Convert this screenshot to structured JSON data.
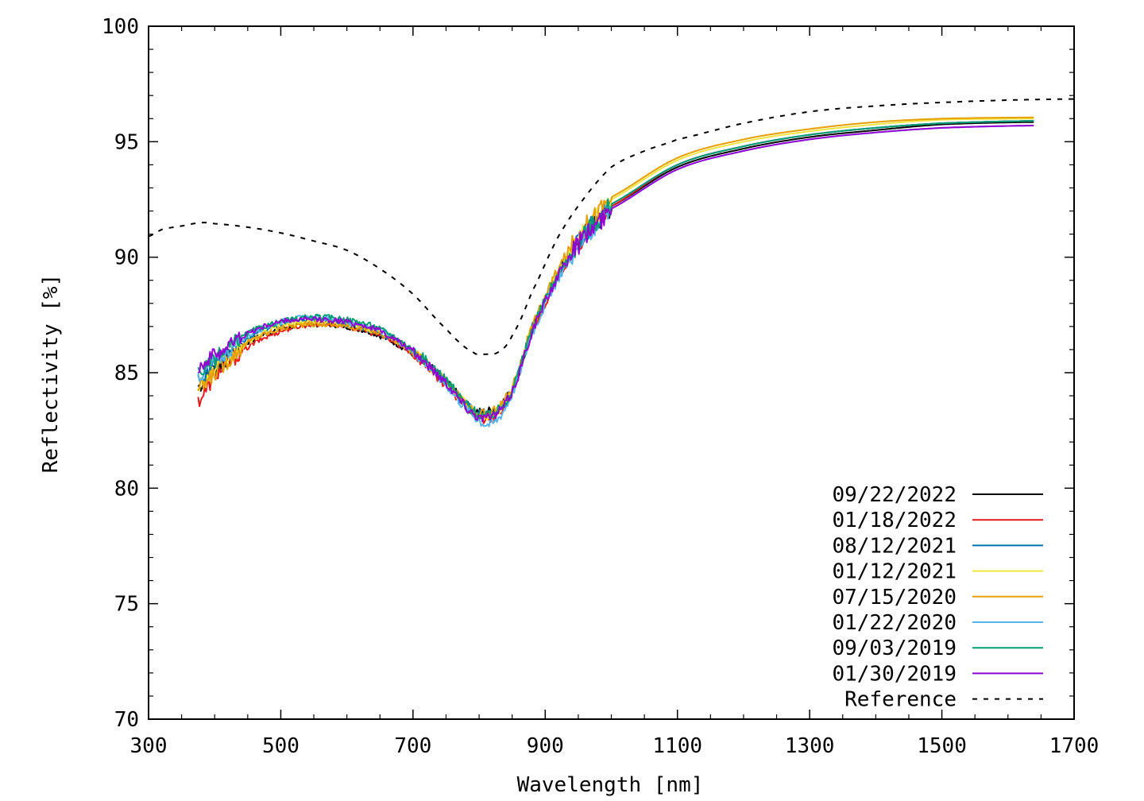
{
  "chart_data": {
    "type": "line",
    "title": "",
    "xlabel": "Wavelength [nm]",
    "ylabel": "Reflectivity [%]",
    "xlim": [
      300,
      1700
    ],
    "ylim": [
      70,
      100
    ],
    "x_ticks": [
      300,
      500,
      700,
      900,
      1100,
      1300,
      1500,
      1700
    ],
    "x_tick_labels": [
      "300",
      "500",
      "700",
      "900",
      "1100",
      "1300",
      "1500",
      "1700"
    ],
    "y_ticks": [
      70,
      75,
      80,
      85,
      90,
      95,
      100
    ],
    "y_tick_labels": [
      "70",
      "75",
      "80",
      "85",
      "90",
      "95",
      "100"
    ],
    "grid": false,
    "legend_position": "bottom-right",
    "series": [
      {
        "name": "09/22/2022",
        "color": "#000000",
        "dash": "solid",
        "x": [
          375,
          400,
          450,
          500,
          550,
          600,
          650,
          700,
          750,
          790,
          820,
          850,
          880,
          920,
          960,
          1000,
          1100,
          1200,
          1300,
          1400,
          1500,
          1640
        ],
        "y": [
          84.4,
          85.2,
          86.3,
          86.9,
          87.1,
          87.0,
          86.6,
          85.8,
          84.6,
          83.4,
          83.4,
          84.3,
          86.8,
          89.3,
          91.0,
          92.2,
          93.9,
          94.7,
          95.2,
          95.5,
          95.75,
          95.85
        ]
      },
      {
        "name": "01/18/2022",
        "color": "#e41a1c",
        "dash": "solid",
        "x": [
          375,
          400,
          450,
          500,
          550,
          600,
          650,
          700,
          750,
          790,
          820,
          850,
          880,
          920,
          960,
          1000,
          1100,
          1200,
          1300,
          1400,
          1500,
          1640
        ],
        "y": [
          83.8,
          84.9,
          86.1,
          86.8,
          87.1,
          87.0,
          86.6,
          85.8,
          84.5,
          83.3,
          83.0,
          84.2,
          86.8,
          89.2,
          90.9,
          92.2,
          94.0,
          94.8,
          95.3,
          95.6,
          95.8,
          95.9
        ]
      },
      {
        "name": "08/12/2021",
        "color": "#0072b2",
        "dash": "solid",
        "x": [
          375,
          400,
          450,
          500,
          550,
          600,
          650,
          700,
          750,
          790,
          820,
          850,
          880,
          920,
          960,
          1000,
          1100,
          1200,
          1300,
          1400,
          1500,
          1640
        ],
        "y": [
          84.6,
          85.4,
          86.5,
          87.1,
          87.3,
          87.1,
          86.7,
          85.9,
          84.6,
          83.4,
          83.2,
          84.3,
          86.9,
          89.3,
          91.0,
          92.3,
          94.0,
          94.8,
          95.3,
          95.6,
          95.8,
          95.9
        ]
      },
      {
        "name": "01/12/2021",
        "color": "#f0e442",
        "dash": "solid",
        "x": [
          375,
          400,
          450,
          500,
          550,
          600,
          650,
          700,
          750,
          790,
          820,
          850,
          880,
          920,
          960,
          1000,
          1100,
          1200,
          1300,
          1400,
          1500,
          1640
        ],
        "y": [
          84.5,
          85.1,
          86.3,
          87.0,
          87.2,
          87.1,
          86.7,
          85.9,
          84.6,
          83.4,
          83.2,
          84.3,
          86.9,
          89.4,
          91.2,
          92.5,
          94.2,
          95.0,
          95.45,
          95.75,
          95.95,
          96.0
        ]
      },
      {
        "name": "07/15/2020",
        "color": "#e69f00",
        "dash": "solid",
        "x": [
          375,
          400,
          450,
          500,
          550,
          600,
          650,
          700,
          750,
          790,
          820,
          850,
          880,
          920,
          960,
          1000,
          1100,
          1200,
          1300,
          1400,
          1500,
          1640
        ],
        "y": [
          84.3,
          85.0,
          86.3,
          86.9,
          87.1,
          87.0,
          86.7,
          85.9,
          84.6,
          83.4,
          83.3,
          84.4,
          87.0,
          89.5,
          91.3,
          92.6,
          94.3,
          95.1,
          95.55,
          95.85,
          96.0,
          96.05
        ]
      },
      {
        "name": "01/22/2020",
        "color": "#56b4e9",
        "dash": "solid",
        "x": [
          375,
          400,
          450,
          500,
          550,
          600,
          650,
          700,
          750,
          790,
          820,
          850,
          880,
          920,
          960,
          1000,
          1100,
          1200,
          1300,
          1400,
          1500,
          1640
        ],
        "y": [
          84.9,
          85.5,
          86.6,
          87.2,
          87.4,
          87.2,
          86.8,
          85.9,
          84.5,
          83.2,
          82.8,
          84.1,
          86.7,
          89.1,
          90.8,
          92.1,
          93.8,
          94.6,
          95.1,
          95.4,
          95.6,
          95.7
        ]
      },
      {
        "name": "09/03/2019",
        "color": "#009e73",
        "dash": "solid",
        "x": [
          375,
          400,
          450,
          500,
          550,
          600,
          650,
          700,
          750,
          790,
          820,
          850,
          880,
          920,
          960,
          1000,
          1100,
          1200,
          1300,
          1400,
          1500,
          1640
        ],
        "y": [
          85.0,
          85.6,
          86.7,
          87.2,
          87.4,
          87.3,
          86.9,
          86.0,
          84.7,
          83.4,
          83.2,
          84.3,
          86.9,
          89.3,
          91.0,
          92.3,
          94.0,
          94.8,
          95.3,
          95.6,
          95.8,
          95.9
        ]
      },
      {
        "name": "01/30/2019",
        "color": "#9400d3",
        "dash": "solid",
        "x": [
          375,
          400,
          450,
          500,
          550,
          600,
          650,
          700,
          750,
          790,
          820,
          850,
          880,
          920,
          960,
          1000,
          1100,
          1200,
          1300,
          1400,
          1500,
          1640
        ],
        "y": [
          85.3,
          85.8,
          86.7,
          87.2,
          87.3,
          87.2,
          86.8,
          85.9,
          84.6,
          83.3,
          83.1,
          84.2,
          86.8,
          89.2,
          90.9,
          92.1,
          93.8,
          94.6,
          95.1,
          95.4,
          95.6,
          95.7
        ]
      },
      {
        "name": "Reference",
        "color": "#000000",
        "dash": "dashed",
        "x": [
          300,
          320,
          350,
          380,
          400,
          450,
          500,
          550,
          600,
          650,
          700,
          750,
          790,
          810,
          830,
          850,
          880,
          920,
          960,
          1000,
          1050,
          1100,
          1200,
          1300,
          1400,
          1500,
          1600,
          1700
        ],
        "y": [
          90.9,
          91.2,
          91.35,
          91.5,
          91.45,
          91.3,
          91.05,
          90.7,
          90.3,
          89.5,
          88.4,
          86.9,
          85.9,
          85.8,
          85.9,
          86.6,
          88.5,
          90.9,
          92.6,
          93.9,
          94.6,
          95.1,
          95.8,
          96.3,
          96.55,
          96.7,
          96.8,
          96.85
        ]
      }
    ]
  }
}
